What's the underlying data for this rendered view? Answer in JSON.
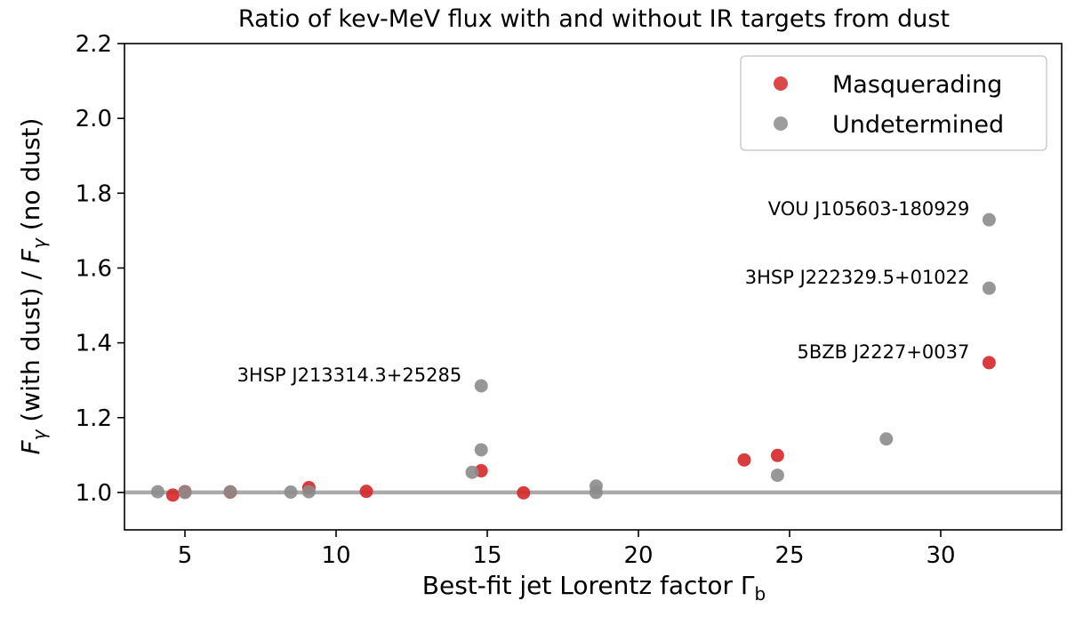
{
  "chart_data": {
    "type": "scatter",
    "title": "Ratio of kev-MeV flux with and without IR targets from dust",
    "xlabel": "Best-fit jet Lorentz factor Γ",
    "xlabel_sub": "b",
    "ylabel": {
      "f1": "F",
      "sub1": "γ",
      "mid": " (with dust) / ",
      "f2": "F",
      "sub2": "γ",
      "end": " (no dust)"
    },
    "xlim": [
      3.0,
      34.0
    ],
    "ylim": [
      0.9,
      2.2
    ],
    "x_ticks": [
      5,
      10,
      15,
      20,
      25,
      30
    ],
    "y_ticks": [
      1.0,
      1.2,
      1.4,
      1.6,
      1.8,
      2.0,
      2.2
    ],
    "reference_line": {
      "y": 1.0,
      "color": "#aaaaaa"
    },
    "grid": false,
    "legend_position": "top-right",
    "series": [
      {
        "name": "Masquerading",
        "color": "#d62728",
        "points": [
          [
            4.6,
            0.993
          ],
          [
            5.0,
            1.002
          ],
          [
            6.5,
            1.001
          ],
          [
            9.1,
            1.013
          ],
          [
            11.0,
            1.003
          ],
          [
            14.8,
            1.058
          ],
          [
            16.2,
            0.999
          ],
          [
            23.5,
            1.087
          ],
          [
            24.6,
            1.099
          ],
          [
            31.6,
            1.347
          ]
        ]
      },
      {
        "name": "Undetermined",
        "color": "#8c8c8c",
        "points": [
          [
            4.1,
            1.002
          ],
          [
            5.0,
            1.0
          ],
          [
            6.5,
            1.002
          ],
          [
            8.5,
            1.001
          ],
          [
            9.1,
            1.002
          ],
          [
            14.5,
            1.054
          ],
          [
            14.8,
            1.114
          ],
          [
            14.8,
            1.285
          ],
          [
            18.6,
            1.017
          ],
          [
            18.6,
            1.0
          ],
          [
            24.6,
            1.046
          ],
          [
            28.2,
            1.143
          ],
          [
            31.6,
            1.546
          ],
          [
            31.6,
            1.729
          ]
        ]
      }
    ],
    "annotations": [
      {
        "text": "3HSP J213314.3+25285",
        "x": 14.8,
        "y": 1.285,
        "color": "#8c8c8c"
      },
      {
        "text": "VOU J105603-180929",
        "x": 31.6,
        "y": 1.729,
        "color": "#8c8c8c"
      },
      {
        "text": "3HSP J222329.5+01022",
        "x": 31.6,
        "y": 1.546,
        "color": "#8c8c8c"
      },
      {
        "text": "5BZB J2227+0037",
        "x": 31.6,
        "y": 1.347,
        "color": "#d62728"
      }
    ]
  }
}
